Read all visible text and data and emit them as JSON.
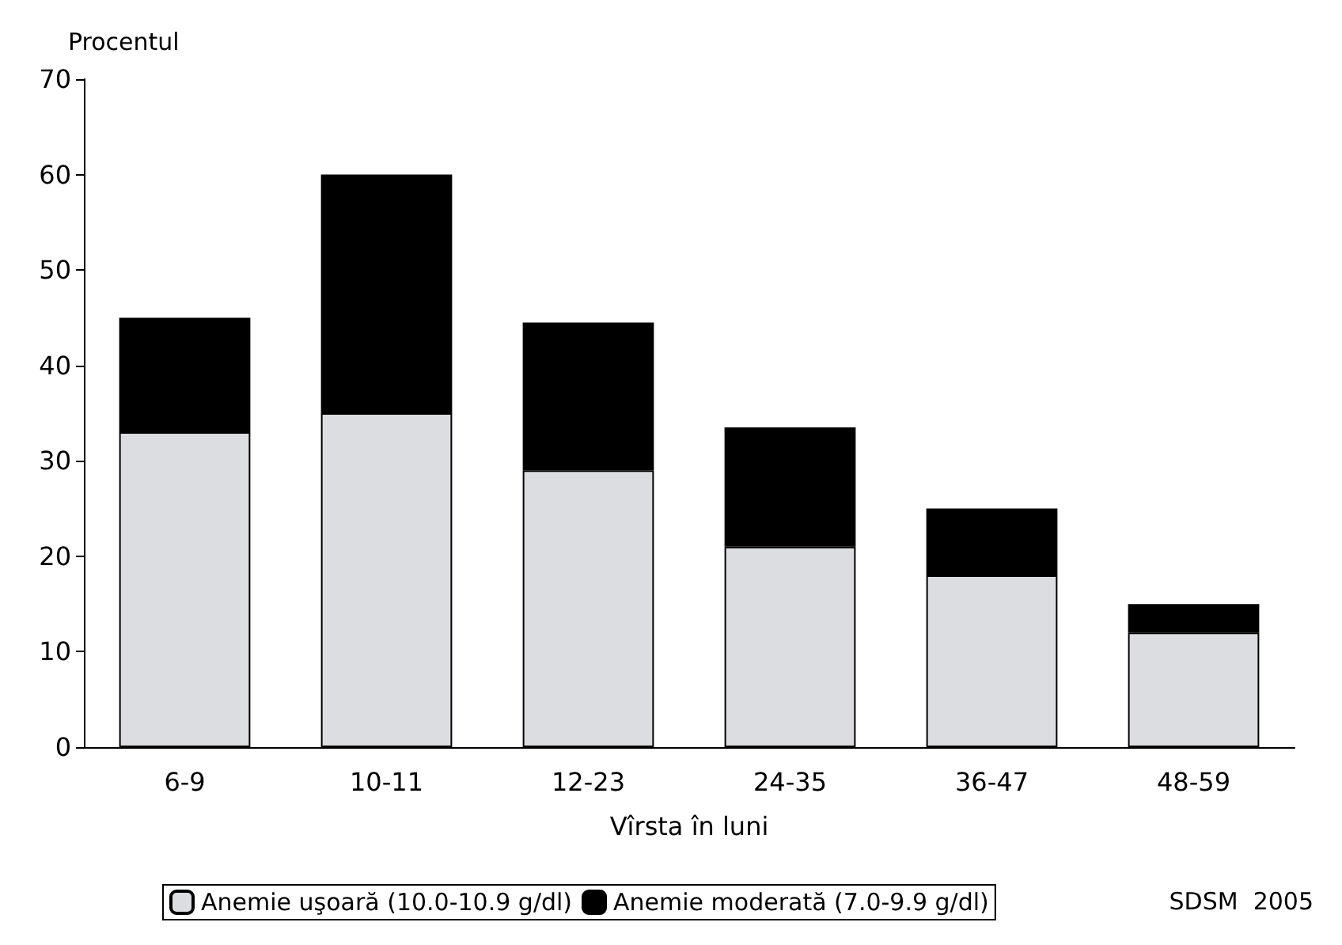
{
  "chart_data": {
    "type": "bar",
    "stacked": true,
    "ylabel": "Procentul",
    "xlabel": "Vîrsta în luni",
    "categories": [
      "6-9",
      "10-11",
      "12-23",
      "24-35",
      "36-47",
      "48-59"
    ],
    "series": [
      {
        "name": "Anemie uşoară (10.0-10.9 g/dl)",
        "color": "#dcdde0",
        "values": [
          33,
          35,
          29,
          21,
          18,
          12
        ]
      },
      {
        "name": "Anemie moderată (7.0-9.9 g/dl)",
        "color": "#000000",
        "values": [
          12,
          25,
          15.5,
          12.5,
          7,
          3
        ]
      }
    ],
    "ylim": [
      0,
      70
    ],
    "yticks": [
      0,
      10,
      20,
      30,
      40,
      50,
      60,
      70
    ],
    "grid": false,
    "legend": "bottom",
    "annotations": [
      "SDSM  2005"
    ]
  }
}
